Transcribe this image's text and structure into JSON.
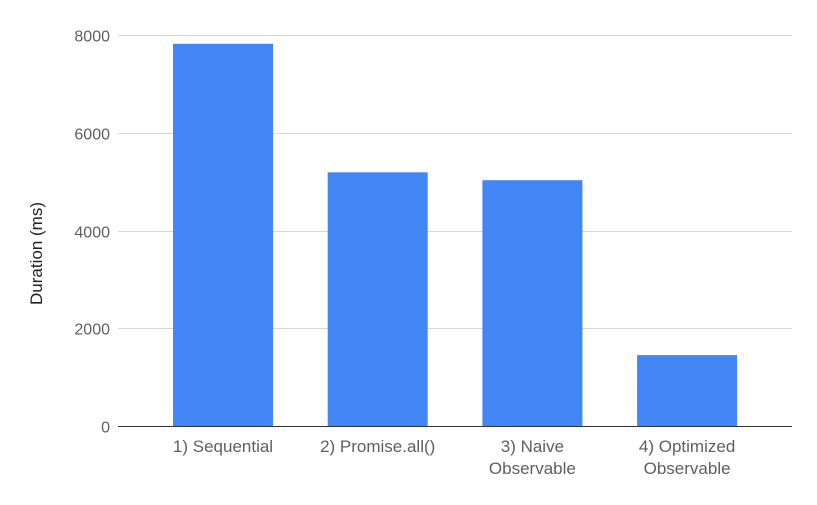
{
  "chart_data": {
    "type": "bar",
    "title": "",
    "xlabel": "",
    "ylabel": "Duration (ms)",
    "categories": [
      "1) Sequential",
      "2) Promise.all()",
      "3) Naive Observable",
      "4) Optimized Observable"
    ],
    "category_lines": [
      [
        "1) Sequential"
      ],
      [
        "2) Promise.all()"
      ],
      [
        "3) Naive",
        "Observable"
      ],
      [
        "4) Optimized",
        "Observable"
      ]
    ],
    "values": [
      7820,
      5190,
      5030,
      1450
    ],
    "ylim": [
      0,
      8000
    ],
    "yticks": [
      0,
      2000,
      4000,
      6000,
      8000
    ],
    "grid": true,
    "legend": "none",
    "bar_color": "#4285f4"
  }
}
